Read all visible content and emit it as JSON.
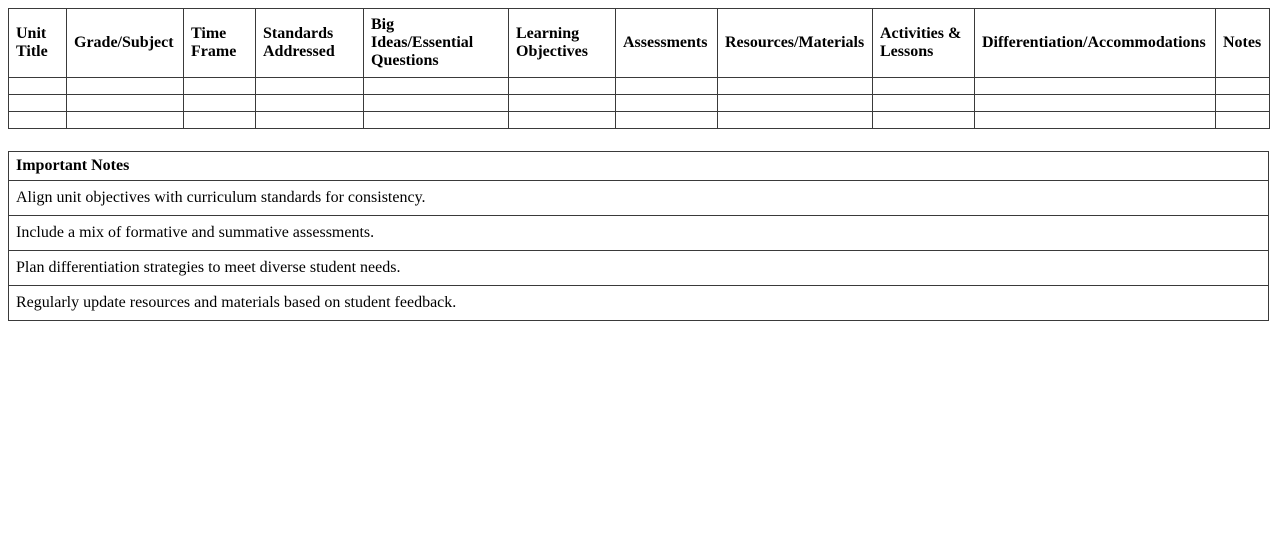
{
  "plan_table": {
    "columns": [
      "Unit\nTitle",
      "Grade/Subject",
      "Time\nFrame",
      "Standards\nAddressed",
      "Big\nIdeas/Essential\nQuestions",
      "Learning\nObjectives",
      "Assessments",
      "Resources/Materials",
      "Activities &\nLessons",
      "Differentiation/Accommodations",
      "Notes"
    ],
    "empty_rows": 3
  },
  "notes_table": {
    "header": "Important Notes",
    "rows": [
      "Align unit objectives with curriculum standards for consistency.",
      "Include a mix of formative and summative assessments.",
      "Plan differentiation strategies to meet diverse student needs.",
      "Regularly update resources and materials based on student feedback."
    ]
  },
  "colors": {
    "table_border": "#3a3a3a",
    "text": "#000000",
    "background": "#ffffff"
  }
}
